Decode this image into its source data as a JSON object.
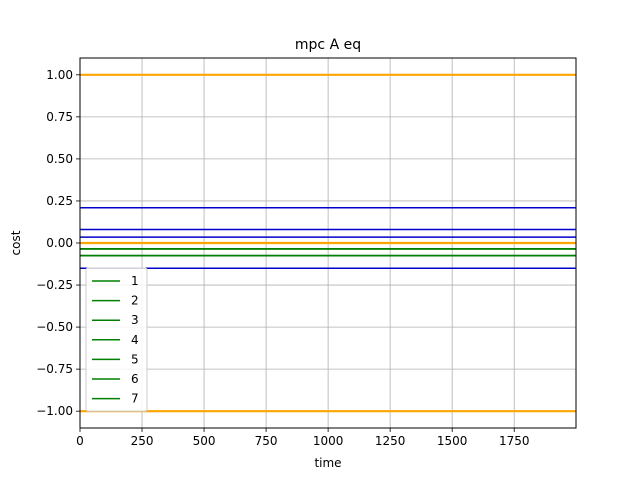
{
  "chart_data": {
    "type": "line",
    "title": "mpc A eq",
    "xlabel": "time",
    "ylabel": "cost",
    "xlim": [
      0,
      1999
    ],
    "ylim": [
      -1.1,
      1.1
    ],
    "xticks": [
      0,
      250,
      500,
      750,
      1000,
      1250,
      1500,
      1750
    ],
    "xtick_labels": [
      "0",
      "250",
      "500",
      "750",
      "1000",
      "1250",
      "1500",
      "1750"
    ],
    "yticks": [
      1.0,
      0.75,
      0.5,
      0.25,
      0.0,
      -0.25,
      -0.5,
      -0.75,
      -1.0
    ],
    "ytick_labels": [
      "1.00",
      "0.75",
      "0.50",
      "0.25",
      "0.00",
      "−0.25",
      "−0.50",
      "−0.75",
      "−1.00"
    ],
    "grid": true,
    "legend_position": "lower-left",
    "colors": {
      "legend": "#008000",
      "orange": "#FFA500",
      "blue": "#0000CD",
      "green": "#008000"
    },
    "series": [
      {
        "name": "1",
        "color": "#008000",
        "x": [
          0,
          1999
        ],
        "y": [
          -0.035,
          -0.035
        ]
      },
      {
        "name": "2",
        "color": "#008000",
        "x": [
          0,
          1999
        ],
        "y": [
          -0.075,
          -0.075
        ]
      },
      {
        "name": "3",
        "color": "#008000",
        "x": [
          0,
          1999
        ],
        "y": [
          -0.035,
          -0.035
        ]
      },
      {
        "name": "4",
        "color": "#008000",
        "x": [
          0,
          1999
        ],
        "y": [
          -0.075,
          -0.075
        ]
      },
      {
        "name": "5",
        "color": "#008000",
        "x": [
          0,
          1999
        ],
        "y": [
          -0.035,
          -0.035
        ]
      },
      {
        "name": "6",
        "color": "#008000",
        "x": [
          0,
          1999
        ],
        "y": [
          -0.075,
          -0.075
        ]
      },
      {
        "name": "7",
        "color": "#008000",
        "x": [
          0,
          1999
        ],
        "y": [
          -0.035,
          -0.035
        ]
      }
    ],
    "extra_lines": [
      {
        "color": "#FFA500",
        "x": [
          0,
          1999
        ],
        "y": [
          1.0,
          1.0
        ]
      },
      {
        "color": "#FFA500",
        "x": [
          0,
          1999
        ],
        "y": [
          -1.0,
          -1.0
        ]
      },
      {
        "color": "#FFA500",
        "x": [
          0,
          1999
        ],
        "y": [
          0.0,
          0.0
        ]
      },
      {
        "color": "#0000CD",
        "x": [
          0,
          1999
        ],
        "y": [
          0.21,
          0.21
        ]
      },
      {
        "color": "#0000CD",
        "x": [
          0,
          1999
        ],
        "y": [
          0.08,
          0.08
        ]
      },
      {
        "color": "#0000CD",
        "x": [
          0,
          1999
        ],
        "y": [
          0.035,
          0.035
        ]
      },
      {
        "color": "#0000CD",
        "x": [
          0,
          1999
        ],
        "y": [
          -0.15,
          -0.15
        ]
      }
    ]
  }
}
